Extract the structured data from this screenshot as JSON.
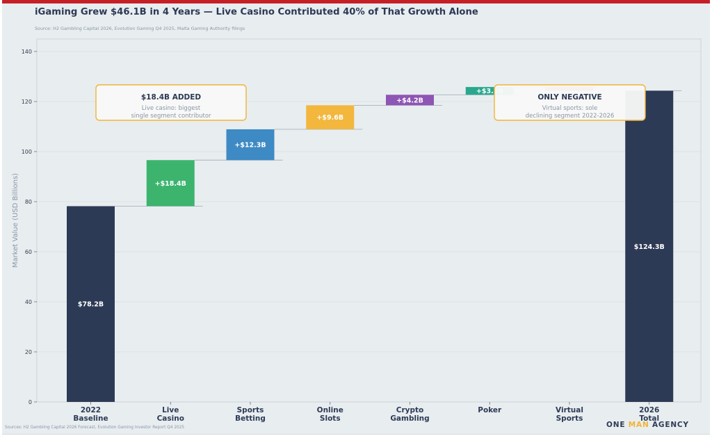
{
  "title": "iGaming Grew $46.1B in 4 Years — Live Casino Contributed 40% of That Growth Alone",
  "source_top": "Source: H2 Gambling Capital 2026, Evolution Gaming Q4 2025, Malta Gaming Authority filings",
  "source_bottom": "Sources: H2 Gambling Capital 2026 Forecast, Evolution Gaming Investor Report Q4 2025",
  "brand": {
    "part1": "ONE",
    "part2": "MAN",
    "part3": "AGENCY"
  },
  "chart_data": {
    "type": "waterfall",
    "ylabel": "Market Value (USD Billions)",
    "ylim": [
      0,
      145
    ],
    "yticks": [
      0,
      20,
      40,
      60,
      80,
      100,
      120,
      140
    ],
    "grid": true,
    "categories": [
      [
        "2022",
        "Baseline"
      ],
      [
        "Live",
        "Casino"
      ],
      [
        "Sports",
        "Betting"
      ],
      [
        "Online",
        "Slots"
      ],
      [
        "Crypto",
        "Gambling"
      ],
      [
        "Poker"
      ],
      [
        "Virtual",
        "Sports"
      ],
      [
        "2026",
        "Total"
      ]
    ],
    "bars": [
      {
        "kind": "total",
        "start": 0,
        "end": 78.2,
        "label": "$78.2B",
        "color": "#2d3a55"
      },
      {
        "kind": "delta",
        "start": 78.2,
        "end": 96.6,
        "label": "+$18.4B",
        "color": "#3cb46e"
      },
      {
        "kind": "delta",
        "start": 96.6,
        "end": 108.9,
        "label": "+$12.3B",
        "color": "#3d8ac4"
      },
      {
        "kind": "delta",
        "start": 108.9,
        "end": 118.5,
        "label": "+$9.6B",
        "color": "#f3b73d"
      },
      {
        "kind": "delta",
        "start": 118.5,
        "end": 122.7,
        "label": "+$4.2B",
        "color": "#8e55b4"
      },
      {
        "kind": "delta",
        "start": 122.7,
        "end": 125.8,
        "label": "+$3.1B",
        "color": "#2aa88e"
      },
      {
        "kind": "delta",
        "start": 125.8,
        "end": 124.3,
        "label": "",
        "color": "#e15b50"
      },
      {
        "kind": "total",
        "start": 0,
        "end": 124.3,
        "label": "$124.3B",
        "color": "#2d3a55"
      }
    ],
    "annotations": [
      {
        "title": "$18.4B ADDED",
        "lines": [
          "Live casino: biggest",
          "single segment contributor"
        ]
      },
      {
        "title": "ONLY NEGATIVE",
        "lines": [
          "Virtual sports: sole",
          "declining segment 2022-2026"
        ]
      }
    ]
  }
}
